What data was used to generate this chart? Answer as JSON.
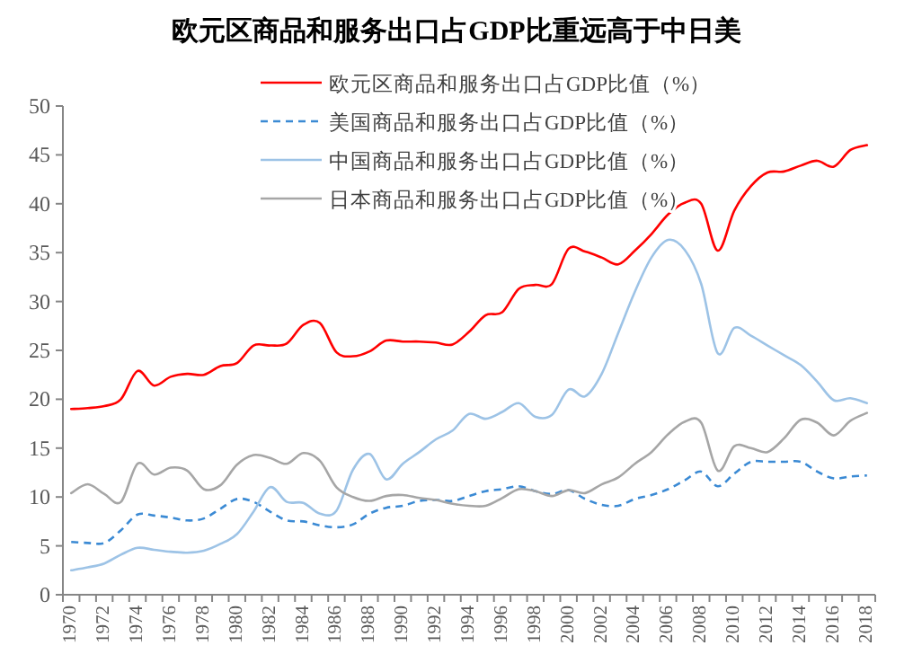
{
  "chart_data": {
    "type": "line",
    "title": "欧元区商品和服务出口占GDP比重远高于中日美",
    "categories": [
      "1970",
      null,
      "1972",
      null,
      "1974",
      null,
      "1976",
      null,
      "1978",
      null,
      "1980",
      null,
      "1982",
      null,
      "1984",
      null,
      "1986",
      null,
      "1988",
      null,
      "1990",
      null,
      "1992",
      null,
      "1994",
      null,
      "1996",
      null,
      "1998",
      null,
      "2000",
      null,
      "2002",
      null,
      "2004",
      null,
      "2006",
      null,
      "2008",
      null,
      "2010",
      null,
      "2012",
      null,
      "2014",
      null,
      "2016",
      null,
      "2018"
    ],
    "series": [
      {
        "name": "欧元区商品和服务出口占GDP比值（%）",
        "color": "#ff0000",
        "line_style": "solid",
        "values": [
          19.0,
          19.1,
          19.3,
          20.0,
          22.9,
          21.4,
          22.3,
          22.6,
          22.5,
          23.4,
          23.7,
          25.5,
          25.5,
          25.7,
          27.6,
          27.8,
          24.8,
          24.4,
          24.9,
          26.0,
          25.9,
          25.9,
          25.8,
          25.6,
          26.9,
          28.6,
          28.9,
          31.3,
          31.7,
          31.8,
          35.4,
          35.1,
          34.5,
          33.8,
          35.2,
          36.9,
          38.9,
          40.1,
          40.0,
          35.2,
          39.3,
          41.8,
          43.2,
          43.3,
          43.9,
          44.4,
          43.8,
          45.5,
          46.0
        ]
      },
      {
        "name": "美国商品和服务出口占GDP比值（%）",
        "color": "#3b8ad4",
        "line_style": "dashed",
        "values": [
          5.4,
          5.3,
          5.3,
          6.6,
          8.2,
          8.1,
          7.9,
          7.6,
          7.8,
          8.8,
          9.8,
          9.5,
          8.5,
          7.6,
          7.5,
          7.1,
          6.9,
          7.2,
          8.3,
          8.9,
          9.1,
          9.6,
          9.7,
          9.6,
          10.1,
          10.6,
          10.8,
          11.1,
          10.6,
          10.3,
          10.7,
          9.8,
          9.2,
          9.1,
          9.8,
          10.2,
          10.8,
          11.7,
          12.6,
          11.1,
          12.4,
          13.6,
          13.6,
          13.6,
          13.6,
          12.6,
          11.9,
          12.1,
          12.2
        ]
      },
      {
        "name": "中国商品和服务出口占GDP比值（%）",
        "color": "#9dc3e6",
        "line_style": "solid",
        "values": [
          2.5,
          2.8,
          3.2,
          4.1,
          4.8,
          4.6,
          4.4,
          4.3,
          4.5,
          5.2,
          6.2,
          8.5,
          11.0,
          9.5,
          9.4,
          8.3,
          8.6,
          12.8,
          14.4,
          11.8,
          13.4,
          14.6,
          15.9,
          16.8,
          18.5,
          18.0,
          18.7,
          19.6,
          18.2,
          18.4,
          21.0,
          20.3,
          22.6,
          26.8,
          31.0,
          34.5,
          36.3,
          35.3,
          31.8,
          24.7,
          27.3,
          26.5,
          25.5,
          24.5,
          23.5,
          21.8,
          19.9,
          20.1,
          19.6
        ]
      },
      {
        "name": "日本商品和服务出口占GDP比值（%）",
        "color": "#a6a6a6",
        "line_style": "solid",
        "values": [
          10.4,
          11.3,
          10.3,
          9.5,
          13.4,
          12.3,
          13.0,
          12.7,
          10.8,
          11.2,
          13.3,
          14.3,
          14.0,
          13.4,
          14.5,
          13.7,
          11.0,
          10.0,
          9.6,
          10.1,
          10.2,
          9.9,
          9.7,
          9.3,
          9.1,
          9.1,
          9.9,
          10.8,
          10.6,
          10.1,
          10.7,
          10.4,
          11.3,
          12.0,
          13.4,
          14.6,
          16.4,
          17.7,
          17.6,
          12.7,
          15.2,
          15.0,
          14.6,
          16.0,
          17.9,
          17.6,
          16.3,
          17.8,
          18.6
        ]
      }
    ],
    "ylim": [
      0,
      50
    ],
    "yticks": [
      0,
      5,
      10,
      15,
      20,
      25,
      30,
      35,
      40,
      45,
      50
    ],
    "legend": "top left",
    "grid": false
  }
}
